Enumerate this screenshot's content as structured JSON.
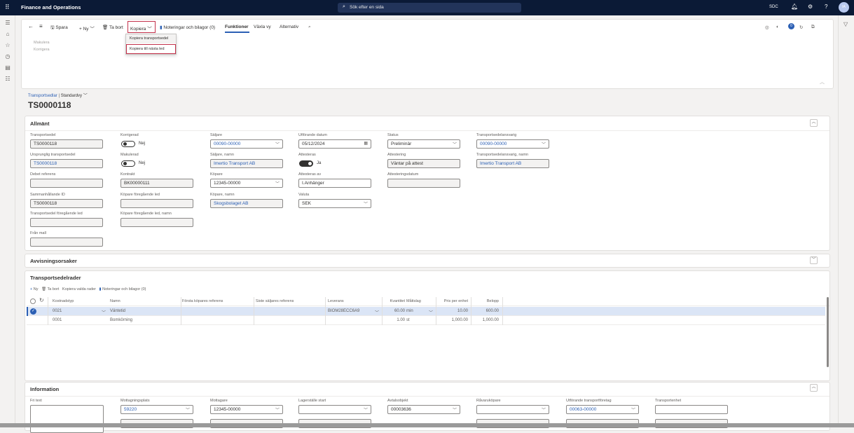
{
  "topbar": {
    "app_title": "Finance and Operations",
    "search_placeholder": "Sök efter en sida",
    "company": "SDC",
    "avatar_initials": "IA"
  },
  "toolbar": {
    "save": "Spara",
    "new": "Ny",
    "delete": "Ta bort",
    "copy": "Kopiera",
    "notes": "Noteringar och bilagor (0)",
    "functions": "Funktioner",
    "switch_view": "Växla vy",
    "options": "Alternativ",
    "notification_count": "0"
  },
  "copy_menu": {
    "items": [
      "Kopiera transportsedel",
      "Kopiera till nästa led"
    ]
  },
  "action_group": {
    "items": [
      "Makulera",
      "Korrigera"
    ]
  },
  "breadcrumb": {
    "list": "Transportsedlar",
    "view": "Standardvy"
  },
  "page_title": "TS0000118",
  "allmant": {
    "title": "Allmänt",
    "fields": [
      {
        "label": "Transportsedel",
        "value": "TS0000118",
        "type": "readonly"
      },
      {
        "label": "Ursprunglig transportsedel",
        "value": "TS0000118",
        "type": "readonly",
        "link": true
      },
      {
        "label": "Debet referens",
        "value": "",
        "type": "readonly"
      },
      {
        "label": "Sammanhållande ID",
        "value": "TS0000118",
        "type": "readonly"
      },
      {
        "label": "Transportsedel föregående led",
        "value": "",
        "type": "readonly"
      },
      {
        "label": "Från mall",
        "value": "",
        "type": "readonly"
      },
      {
        "label": "Korrigerad",
        "value": "Nej",
        "type": "toggle",
        "on": false
      },
      {
        "label": "Makulerad",
        "value": "Nej",
        "type": "toggle",
        "on": false
      },
      {
        "label": "Kontrakt",
        "value": "BK00000111",
        "type": "readonly"
      },
      {
        "label": "Köpare föregående led",
        "value": "",
        "type": "readonly"
      },
      {
        "label": "Köpare föregående led, namn",
        "value": "",
        "type": "readonly"
      },
      {
        "label": "Säljare",
        "value": "00090-00000",
        "type": "dropdown",
        "link": true
      },
      {
        "label": "Säljare, namn",
        "value": "Imertio Transport AB",
        "type": "readonly",
        "link": true
      },
      {
        "label": "Köpare",
        "value": "12345-00000",
        "type": "dropdown"
      },
      {
        "label": "Köpare, namn",
        "value": "Skogsbolaget AB",
        "type": "readonly",
        "link": true
      },
      {
        "label": "Utförande datum",
        "value": "05/12/2024",
        "type": "date"
      },
      {
        "label": "Attesteras",
        "value": "Ja",
        "type": "toggle",
        "on": true
      },
      {
        "label": "Attesteras av",
        "value": "I.Anhänger",
        "type": "text"
      },
      {
        "label": "Valuta",
        "value": "SEK",
        "type": "dropdown"
      },
      {
        "label": "Status",
        "value": "Preliminär",
        "type": "dropdown"
      },
      {
        "label": "Attestering",
        "value": "Väntar på attest",
        "type": "readonly"
      },
      {
        "label": "Attesteringsdatum",
        "value": "",
        "type": "readonly"
      },
      {
        "label": "Transportsedelansvarig",
        "value": "00090-00000",
        "type": "dropdown",
        "link": true
      },
      {
        "label": "Transportsedelansvarig, namn",
        "value": "Imertio Transport AB",
        "type": "readonly",
        "link": true
      }
    ]
  },
  "avvisning": {
    "title": "Avvisningsorsaker"
  },
  "lines": {
    "title": "Transportsedelrader",
    "toolbar": {
      "new": "Ny",
      "delete": "Ta bort",
      "copy_selected": "Kopiera valda rader",
      "notes": "Noteringar och bilagor (0)"
    },
    "columns": [
      "Kostnadstyp",
      "Namn",
      "Första köpares referens",
      "Siste säljares referens",
      "Leverans",
      "Kvantitet",
      "Måttslag",
      "Pris per enhet",
      "Belopp"
    ],
    "rows": [
      {
        "selected": true,
        "cells": [
          "0021",
          "Väntetid",
          "",
          "",
          "BIOM28ECC6A9",
          "60.00",
          "min",
          "10.00",
          "600.00"
        ]
      },
      {
        "selected": false,
        "cells": [
          "0001",
          "Bomkörning",
          "",
          "",
          "",
          "1.00",
          "st",
          "1,000.00",
          "1,000.00"
        ]
      }
    ]
  },
  "information": {
    "title": "Information",
    "fields": [
      {
        "label": "Fri text",
        "value": "",
        "type": "textarea"
      },
      {
        "label": "Mottagningsplats",
        "value": "59220",
        "type": "dropdown",
        "link": true
      },
      {
        "label": "Mottagare",
        "value": "12345-00000",
        "type": "dropdown"
      },
      {
        "label": "Lagerställe start",
        "value": "",
        "type": "dropdown"
      },
      {
        "label": "Avtalsobjekt",
        "value": "00003636",
        "type": "dropdown"
      },
      {
        "label": "Råvaruköpare",
        "value": "",
        "type": "dropdown"
      },
      {
        "label": "Utförande transportföretag",
        "value": "00063-00000",
        "type": "dropdown",
        "link": true
      },
      {
        "label": "Transportenhet",
        "value": "",
        "type": "text"
      }
    ]
  },
  "colors": {
    "topbar": "#0b1a36",
    "accent": "#2b5fb4",
    "highlight_box": "#c4314b",
    "selected_row": "#dbe5f6"
  }
}
